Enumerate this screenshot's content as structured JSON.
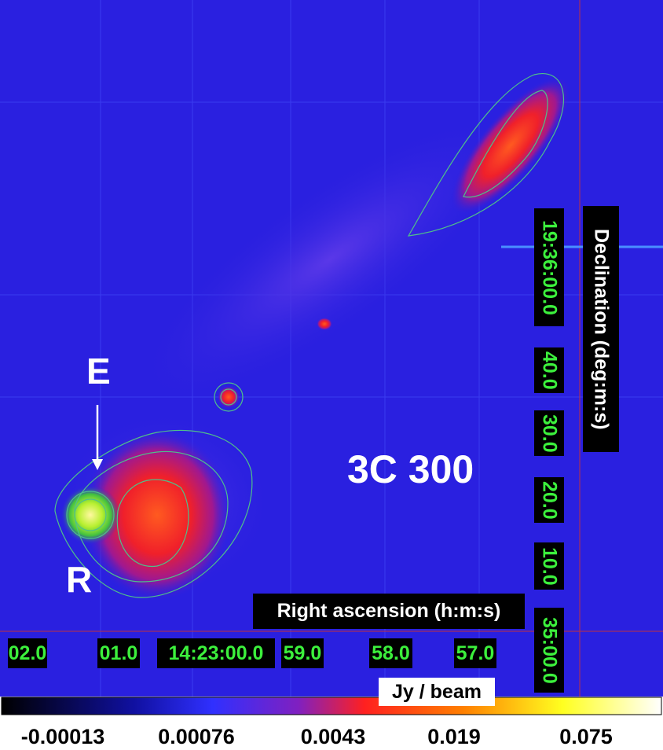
{
  "labels": {
    "e": "E",
    "r": "R",
    "source": "3C 300"
  },
  "axes": {
    "ra": {
      "title": "Right ascension (h:m:s)",
      "ticks": [
        "02.0",
        "01.0",
        "14:23:00.0",
        "59.0",
        "58.0",
        "57.0"
      ]
    },
    "dec": {
      "title": "Declination (deg:m:s)",
      "ticks": [
        "19:36:00.0",
        "40.0",
        "30.0",
        "20.0",
        "10.0",
        "35:00.0"
      ]
    }
  },
  "colorbar": {
    "title": "Jy / beam",
    "ticks": [
      "-0.00013",
      "0.00076",
      "0.0043",
      "0.019",
      "0.075"
    ]
  }
}
